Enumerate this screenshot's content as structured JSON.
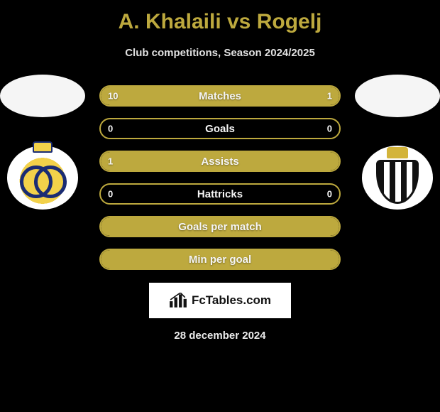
{
  "title": "A. Khalaili vs Rogelj",
  "subtitle": "Club competitions, Season 2024/2025",
  "date": "28 december 2024",
  "brand": {
    "icon": "bars-icon",
    "text": "FcTables.com"
  },
  "colors": {
    "accent": "#bda93e",
    "background": "#000000",
    "text": "#ffffff"
  },
  "left_player": {
    "club_name": "USG",
    "club_colors": {
      "primary": "#f2d14a",
      "secondary": "#1a2c73"
    }
  },
  "right_player": {
    "club_name": "RCSC",
    "club_colors": {
      "primary": "#111111",
      "secondary": "#ffffff",
      "crown": "#d3b43a"
    }
  },
  "bars": [
    {
      "label": "Matches",
      "left": "10",
      "right": "1",
      "left_pct": 91,
      "right_pct": 9,
      "show_vals": true
    },
    {
      "label": "Goals",
      "left": "0",
      "right": "0",
      "left_pct": 0,
      "right_pct": 0,
      "show_vals": true
    },
    {
      "label": "Assists",
      "left": "1",
      "right": "",
      "left_pct": 100,
      "right_pct": 0,
      "show_vals": true,
      "full": true
    },
    {
      "label": "Hattricks",
      "left": "0",
      "right": "0",
      "left_pct": 0,
      "right_pct": 0,
      "show_vals": true
    },
    {
      "label": "Goals per match",
      "left": "",
      "right": "",
      "left_pct": 100,
      "right_pct": 0,
      "show_vals": false,
      "full": true
    },
    {
      "label": "Min per goal",
      "left": "",
      "right": "",
      "left_pct": 100,
      "right_pct": 0,
      "show_vals": false,
      "full": true
    }
  ]
}
